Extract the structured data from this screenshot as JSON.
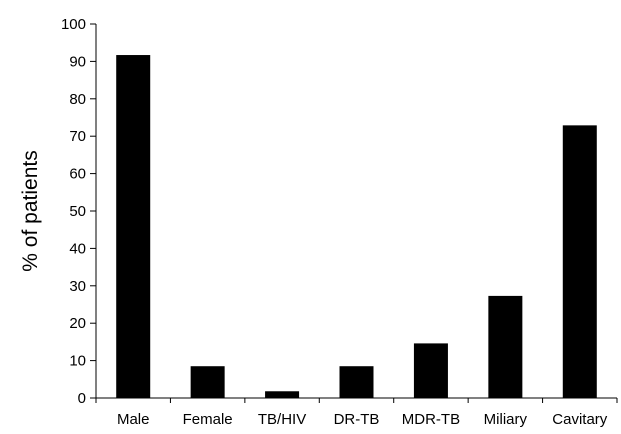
{
  "chart_data": {
    "type": "bar",
    "title": "",
    "xlabel": "",
    "ylabel": "% of patients",
    "categories": [
      "Male",
      "Female",
      "TB/HIV",
      "DR-TB",
      "MDR-TB",
      "Miliary",
      "Cavitary"
    ],
    "values": [
      91.7,
      8.5,
      1.8,
      8.5,
      14.6,
      27.3,
      72.9
    ],
    "ylim": [
      0,
      100
    ],
    "yticks": [
      "0",
      "10",
      "20",
      "30",
      "40",
      "50",
      "60",
      "70",
      "80",
      "90",
      "100"
    ],
    "grid": false,
    "legend": "none",
    "bar_color": "#000000"
  }
}
